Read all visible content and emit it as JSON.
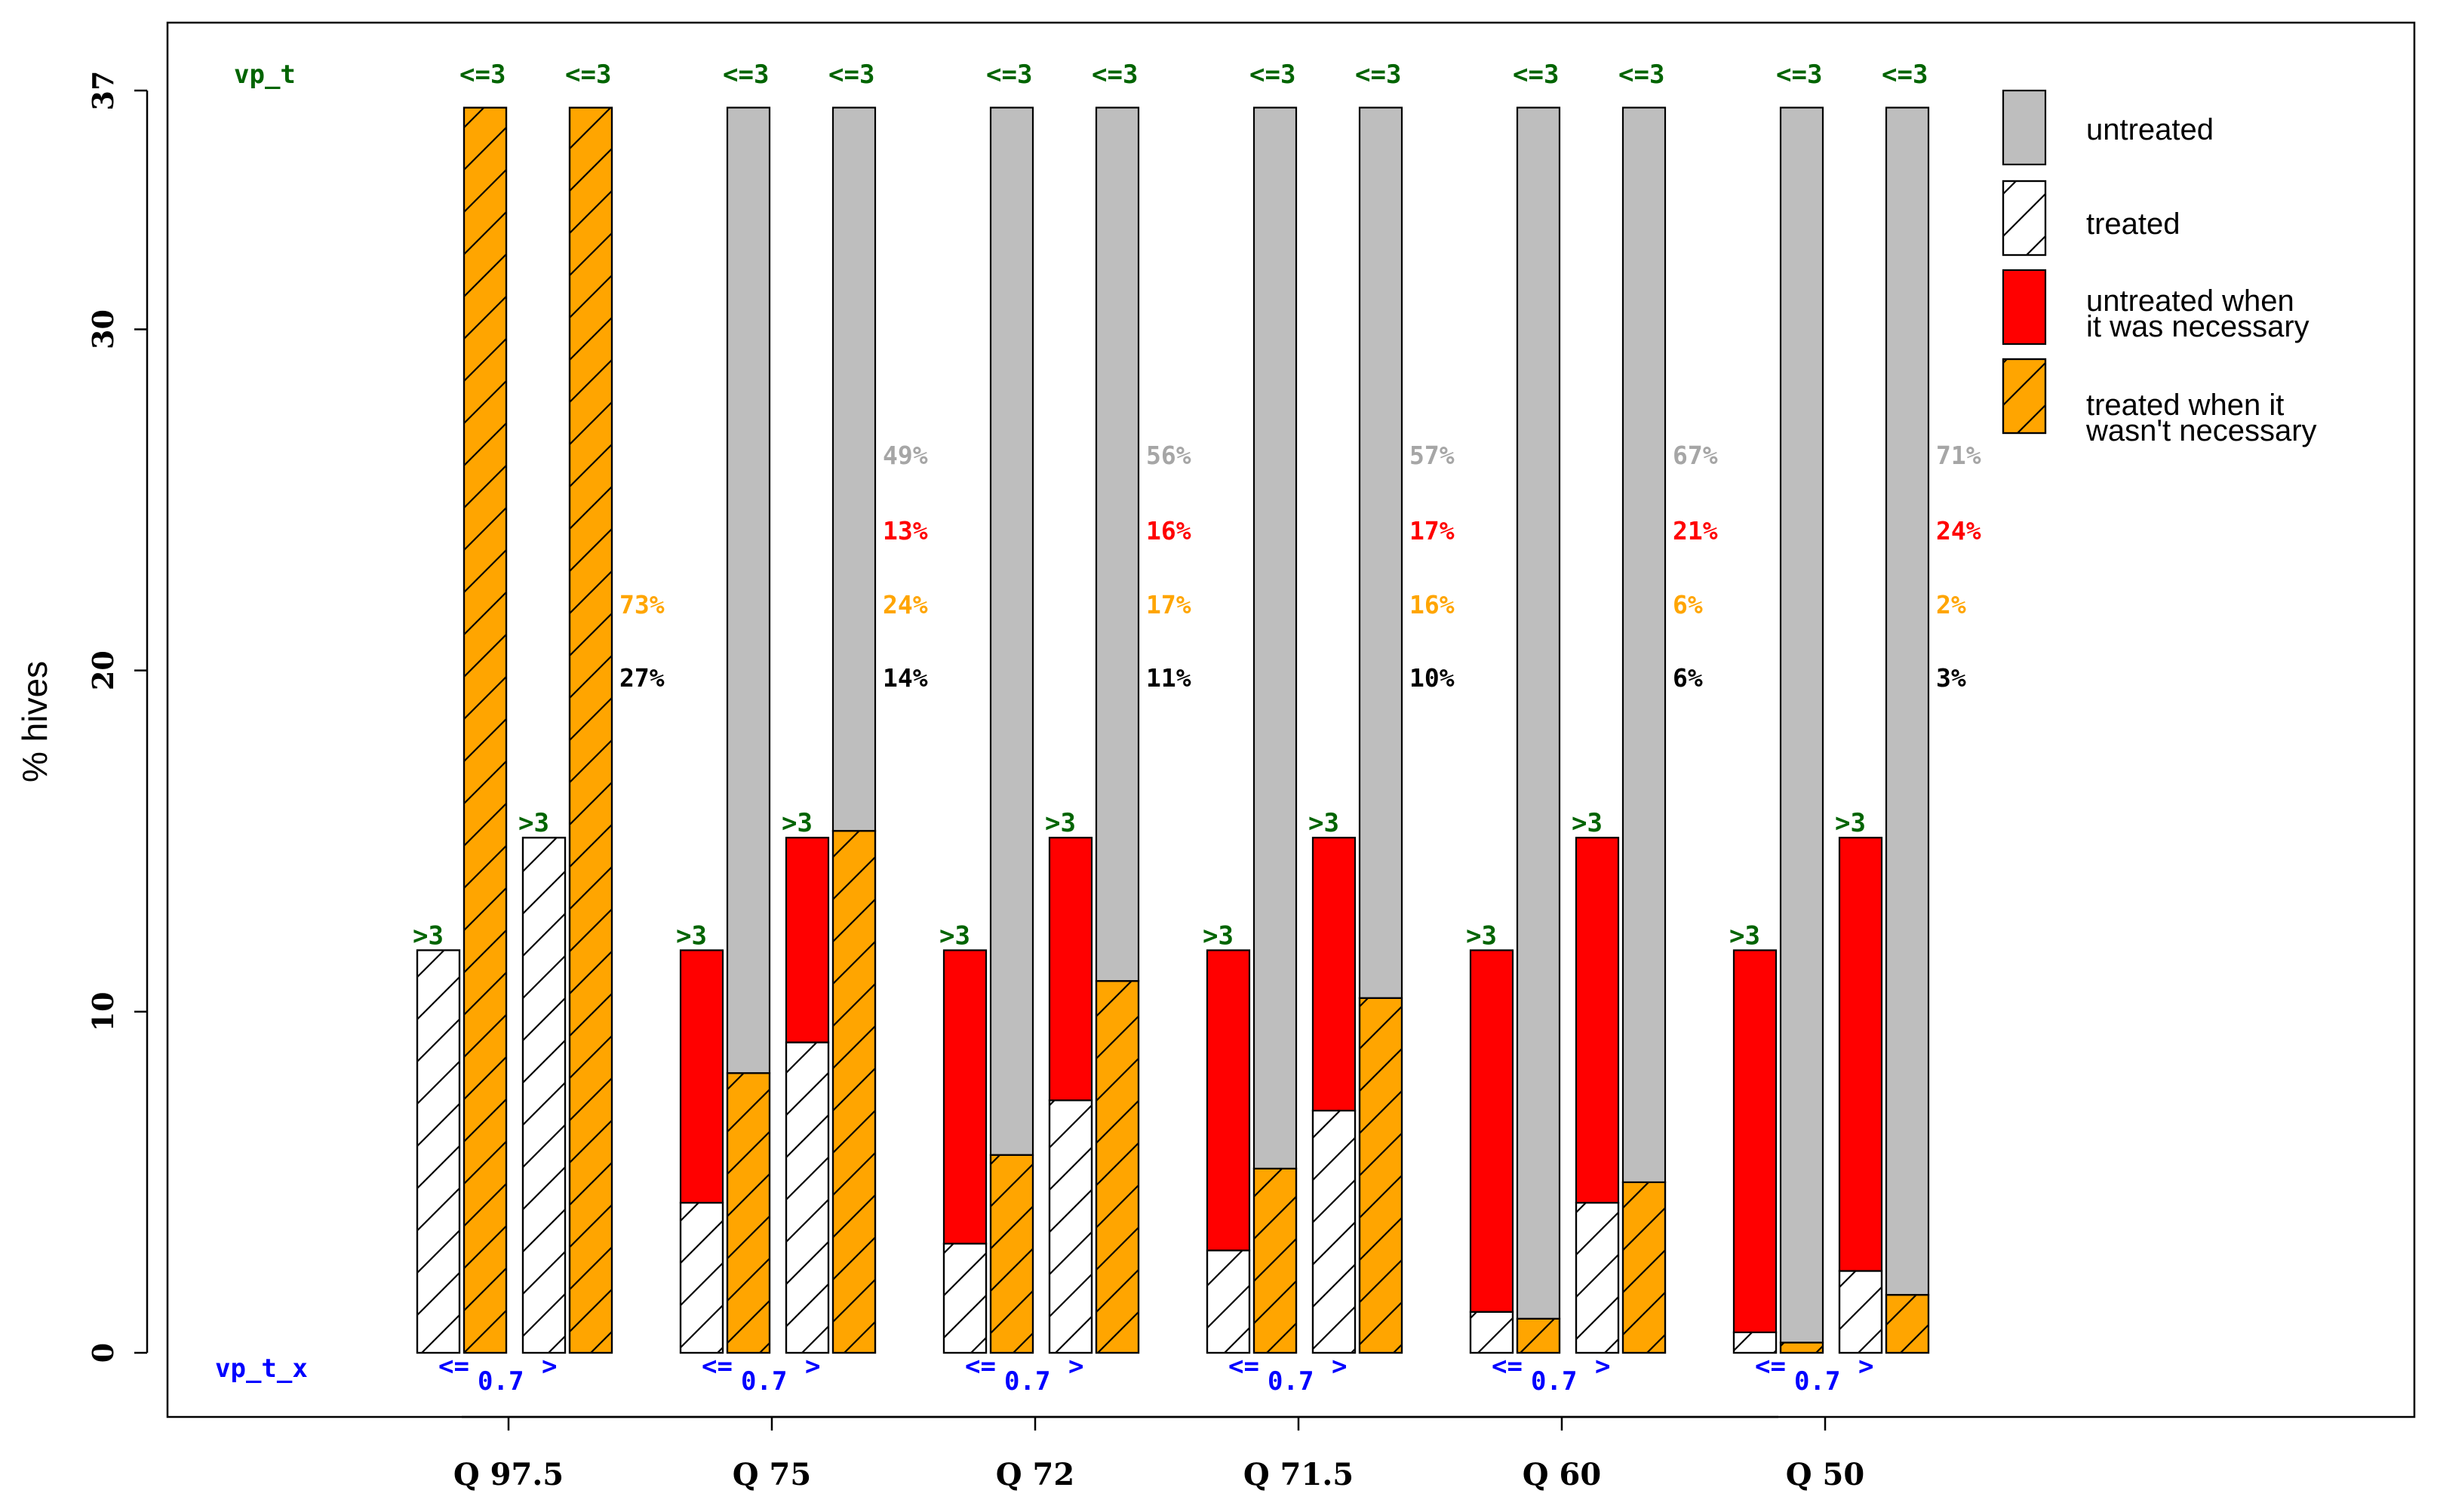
{
  "chart_data": {
    "type": "bar",
    "title": "",
    "ylabel": "% hives",
    "xlabel": "",
    "ylim": [
      0,
      37
    ],
    "ytick_labels": [
      "0",
      "10",
      "20",
      "30",
      "37"
    ],
    "yticks": [
      0,
      10,
      20,
      30,
      37
    ],
    "categories": [
      "Q 97.5",
      "Q 75",
      "Q 72",
      "Q 71.5",
      "Q 60",
      "Q 50"
    ],
    "corner_labels": {
      "top": "vp_t",
      "bottom": "vp_t_x"
    },
    "bar_top_labels": {
      "left": ">3",
      "right": "<=3"
    },
    "bottom_labels": {
      "left": "<=",
      "mid": "0.7",
      "right": ">"
    },
    "colors": {
      "untreated": "#bebebe",
      "treated": "#ffffff",
      "untreated_necessary": "#ff0000",
      "treated_unnecessary": "#ffa500",
      "pct_untreated": "#a6a6a6",
      "pct_red": "#ff0000",
      "pct_orange": "#ffa500",
      "pct_treated": "#000000",
      "green_label": "#006400",
      "blue_label": "#0000ff"
    },
    "legend": [
      {
        "key": "untreated",
        "label": "untreated"
      },
      {
        "key": "treated",
        "label": "treated"
      },
      {
        "key": "untreated_necessary",
        "label": "untreated when it was necessary"
      },
      {
        "key": "treated_unnecessary",
        "label": "treated when it wasn't necessary"
      }
    ],
    "groups": [
      {
        "category": "Q 97.5",
        "left_bar": {
          "total": 11.8,
          "segments": [
            {
              "key": "treated",
              "value": 11.8
            }
          ]
        },
        "right_bar": {
          "total": 36.5,
          "segments": [
            {
              "key": "treated_unnecessary",
              "value": 36.5
            }
          ]
        },
        "mid_bar_left": {
          "total": 15.1,
          "segments": [
            {
              "key": "treated",
              "value": 15.1
            }
          ]
        },
        "mid_bar_right": {
          "total": 36.5,
          "segments": [
            {
              "key": "treated_unnecessary",
              "value": 36.5
            }
          ]
        },
        "percentages": [
          {
            "key": "pct_orange",
            "label": "73%"
          },
          {
            "key": "pct_treated",
            "label": "27%"
          }
        ]
      },
      {
        "category": "Q 75",
        "left_bar": {
          "total": 11.8,
          "segments": [
            {
              "key": "treated",
              "value": 4.4
            },
            {
              "key": "untreated_necessary",
              "value": 7.4
            }
          ]
        },
        "right_bar": {
          "total": 36.5,
          "segments": [
            {
              "key": "treated_unnecessary",
              "value": 8.2
            },
            {
              "key": "untreated",
              "value": 28.3
            }
          ]
        },
        "mid_bar_left": {
          "total": 15.1,
          "segments": [
            {
              "key": "treated",
              "value": 9.1
            },
            {
              "key": "untreated_necessary",
              "value": 6.0
            }
          ]
        },
        "mid_bar_right": {
          "total": 36.5,
          "segments": [
            {
              "key": "treated_unnecessary",
              "value": 15.3
            },
            {
              "key": "untreated",
              "value": 21.2
            }
          ]
        },
        "percentages": [
          {
            "key": "pct_untreated",
            "label": "49%"
          },
          {
            "key": "pct_red",
            "label": "13%"
          },
          {
            "key": "pct_orange",
            "label": "24%"
          },
          {
            "key": "pct_treated",
            "label": "14%"
          }
        ]
      },
      {
        "category": "Q 72",
        "left_bar": {
          "total": 11.8,
          "segments": [
            {
              "key": "treated",
              "value": 3.2
            },
            {
              "key": "untreated_necessary",
              "value": 8.6
            }
          ]
        },
        "right_bar": {
          "total": 36.5,
          "segments": [
            {
              "key": "treated_unnecessary",
              "value": 5.8
            },
            {
              "key": "untreated",
              "value": 30.7
            }
          ]
        },
        "mid_bar_left": {
          "total": 15.1,
          "segments": [
            {
              "key": "treated",
              "value": 7.4
            },
            {
              "key": "untreated_necessary",
              "value": 7.7
            }
          ]
        },
        "mid_bar_right": {
          "total": 36.5,
          "segments": [
            {
              "key": "treated_unnecessary",
              "value": 10.9
            },
            {
              "key": "untreated",
              "value": 25.6
            }
          ]
        },
        "percentages": [
          {
            "key": "pct_untreated",
            "label": "56%"
          },
          {
            "key": "pct_red",
            "label": "16%"
          },
          {
            "key": "pct_orange",
            "label": "17%"
          },
          {
            "key": "pct_treated",
            "label": "11%"
          }
        ]
      },
      {
        "category": "Q 71.5",
        "left_bar": {
          "total": 11.8,
          "segments": [
            {
              "key": "treated",
              "value": 3.0
            },
            {
              "key": "untreated_necessary",
              "value": 8.8
            }
          ]
        },
        "right_bar": {
          "total": 36.5,
          "segments": [
            {
              "key": "treated_unnecessary",
              "value": 5.4
            },
            {
              "key": "untreated",
              "value": 31.1
            }
          ]
        },
        "mid_bar_left": {
          "total": 15.1,
          "segments": [
            {
              "key": "treated",
              "value": 7.1
            },
            {
              "key": "untreated_necessary",
              "value": 8.0
            }
          ]
        },
        "mid_bar_right": {
          "total": 36.5,
          "segments": [
            {
              "key": "treated_unnecessary",
              "value": 10.4
            },
            {
              "key": "untreated",
              "value": 26.1
            }
          ]
        },
        "percentages": [
          {
            "key": "pct_untreated",
            "label": "57%"
          },
          {
            "key": "pct_red",
            "label": "17%"
          },
          {
            "key": "pct_orange",
            "label": "16%"
          },
          {
            "key": "pct_treated",
            "label": "10%"
          }
        ]
      },
      {
        "category": "Q 60",
        "left_bar": {
          "total": 11.8,
          "segments": [
            {
              "key": "treated",
              "value": 1.2
            },
            {
              "key": "untreated_necessary",
              "value": 10.6
            }
          ]
        },
        "right_bar": {
          "total": 36.5,
          "segments": [
            {
              "key": "treated_unnecessary",
              "value": 1.0
            },
            {
              "key": "untreated",
              "value": 35.5
            }
          ]
        },
        "mid_bar_left": {
          "total": 15.1,
          "segments": [
            {
              "key": "treated",
              "value": 4.4
            },
            {
              "key": "untreated_necessary",
              "value": 10.7
            }
          ]
        },
        "mid_bar_right": {
          "total": 36.5,
          "segments": [
            {
              "key": "treated_unnecessary",
              "value": 5.0
            },
            {
              "key": "untreated",
              "value": 31.5
            }
          ]
        },
        "percentages": [
          {
            "key": "pct_untreated",
            "label": "67%"
          },
          {
            "key": "pct_red",
            "label": "21%"
          },
          {
            "key": "pct_orange",
            "label": "6%"
          },
          {
            "key": "pct_treated",
            "label": "6%"
          }
        ]
      },
      {
        "category": "Q 50",
        "left_bar": {
          "total": 11.8,
          "segments": [
            {
              "key": "treated",
              "value": 0.6
            },
            {
              "key": "untreated_necessary",
              "value": 11.2
            }
          ]
        },
        "right_bar": {
          "total": 36.5,
          "segments": [
            {
              "key": "treated_unnecessary",
              "value": 0.3
            },
            {
              "key": "untreated",
              "value": 36.2
            }
          ]
        },
        "mid_bar_left": {
          "total": 15.1,
          "segments": [
            {
              "key": "treated",
              "value": 2.4
            },
            {
              "key": "untreated_necessary",
              "value": 12.7
            }
          ]
        },
        "mid_bar_right": {
          "total": 36.5,
          "segments": [
            {
              "key": "treated_unnecessary",
              "value": 1.7
            },
            {
              "key": "untreated",
              "value": 34.8
            }
          ]
        },
        "percentages": [
          {
            "key": "pct_untreated",
            "label": "71%"
          },
          {
            "key": "pct_red",
            "label": "24%"
          },
          {
            "key": "pct_orange",
            "label": "2%"
          },
          {
            "key": "pct_treated",
            "label": "3%"
          }
        ]
      }
    ]
  }
}
